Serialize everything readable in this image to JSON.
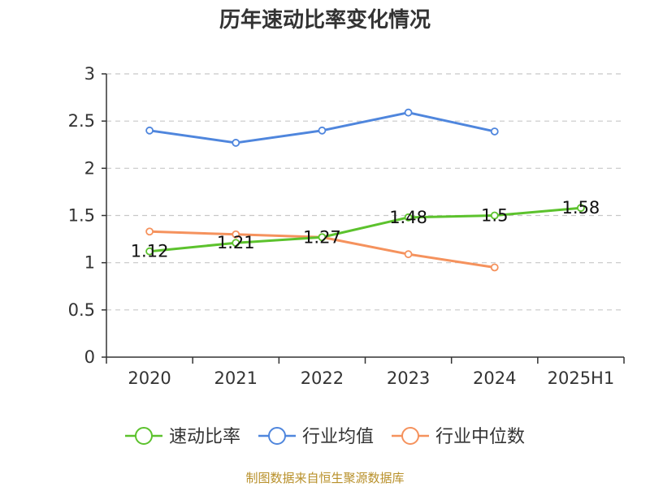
{
  "chart_data": {
    "type": "line",
    "title": "历年速动比率变化情况",
    "xlabel": "",
    "ylabel": "",
    "categories": [
      "2020",
      "2021",
      "2022",
      "2023",
      "2024",
      "2025H1"
    ],
    "ylim": [
      0,
      3
    ],
    "yticks": [
      "0",
      "0.5",
      "1",
      "1.5",
      "2",
      "2.5",
      "3"
    ],
    "grid": true,
    "legend_position": "bottom",
    "series": [
      {
        "name": "速动比率",
        "color": "#5cc22d",
        "values": [
          1.12,
          1.21,
          1.27,
          1.48,
          1.5,
          1.58
        ],
        "labels": [
          "1.12",
          "1.21",
          "1.27",
          "1.48",
          "1.5",
          "1.58"
        ]
      },
      {
        "name": "行业均值",
        "color": "#4f86dd",
        "values": [
          2.4,
          2.27,
          2.4,
          2.59,
          2.39,
          null
        ]
      },
      {
        "name": "行业中位数",
        "color": "#f5925d",
        "values": [
          1.33,
          1.3,
          1.27,
          1.09,
          0.95,
          null
        ]
      }
    ]
  },
  "footer": "制图数据来自恒生聚源数据库"
}
